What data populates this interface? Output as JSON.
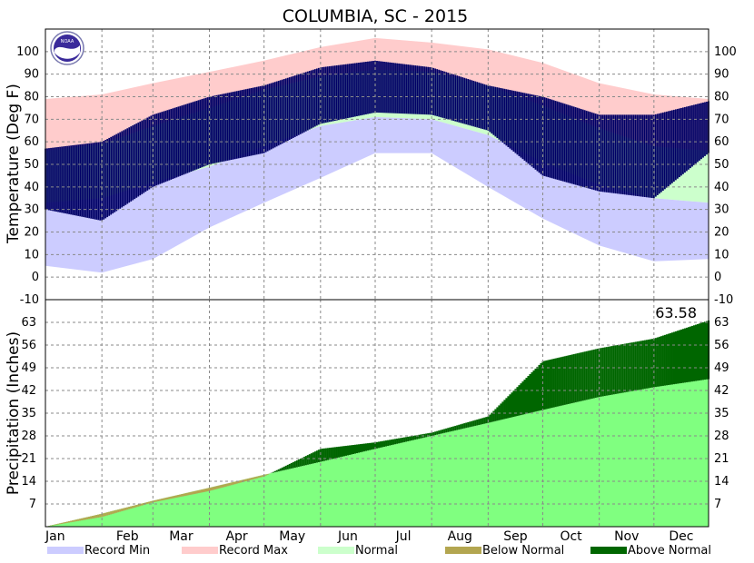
{
  "chart_data": [
    {
      "id": "temperature",
      "type": "area",
      "title": "COLUMBIA, SC - 2015",
      "ylabel": "Temperature (Deg F)",
      "ylim": [
        -10,
        110
      ],
      "yticks": [
        -10,
        0,
        10,
        20,
        30,
        40,
        50,
        60,
        70,
        80,
        90,
        100
      ],
      "grid": true,
      "months": [
        "Jan",
        "Feb",
        "Mar",
        "Apr",
        "May",
        "Jun",
        "Jul",
        "Aug",
        "Sep",
        "Oct",
        "Nov",
        "Dec"
      ],
      "x_unit": "day of year",
      "x": [
        1,
        32,
        60,
        91,
        121,
        152,
        182,
        213,
        244,
        274,
        305,
        335,
        365
      ],
      "series": [
        {
          "name": "Record Max",
          "color": "#ffcccc",
          "values": [
            79,
            81,
            86,
            91,
            96,
            102,
            106,
            104,
            101,
            95,
            86,
            81,
            79
          ]
        },
        {
          "name": "Normal",
          "color": "#ccffcc",
          "high": [
            56,
            59,
            67,
            75,
            83,
            89,
            92,
            91,
            85,
            76,
            66,
            58,
            56
          ],
          "low": [
            33,
            35,
            42,
            49,
            58,
            67,
            71,
            70,
            63,
            51,
            41,
            35,
            33
          ]
        },
        {
          "name": "Record Min",
          "color": "#ccccff",
          "values": [
            5,
            2,
            8,
            22,
            33,
            44,
            55,
            55,
            40,
            26,
            14,
            7,
            8
          ]
        }
      ],
      "observed": {
        "color": "#000066",
        "high": [
          57,
          60,
          72,
          80,
          85,
          93,
          96,
          93,
          85,
          80,
          72,
          72,
          78
        ],
        "low": [
          30,
          25,
          40,
          50,
          55,
          68,
          73,
          72,
          65,
          45,
          38,
          35,
          55
        ]
      }
    },
    {
      "id": "precipitation",
      "type": "area",
      "ylabel": "Precipitation (Inches)",
      "ylim": [
        0,
        70
      ],
      "yticks": [
        7,
        14,
        21,
        28,
        35,
        42,
        49,
        56,
        63
      ],
      "grid": true,
      "total_label": "63.58",
      "x_unit": "day of year",
      "x": [
        1,
        32,
        60,
        91,
        121,
        152,
        182,
        213,
        244,
        274,
        305,
        335,
        365
      ],
      "normal": [
        0,
        4,
        8,
        12,
        16,
        20,
        24,
        28,
        32,
        36,
        40,
        43,
        45.5
      ],
      "observed": [
        0,
        3,
        7.5,
        11,
        15.5,
        24,
        26,
        29,
        34,
        51,
        55,
        58,
        63.58
      ],
      "colors": {
        "normal": "#80ff80",
        "below": "#b3a650",
        "above": "#006600"
      }
    }
  ],
  "legend": [
    {
      "label": "Record Min",
      "color": "#ccccff"
    },
    {
      "label": "Record Max",
      "color": "#ffcccc"
    },
    {
      "label": "Normal",
      "color": "#ccffcc"
    },
    {
      "label": "Below Normal",
      "color": "#b3a650"
    },
    {
      "label": "Above Normal",
      "color": "#006600"
    }
  ],
  "logo": {
    "text": "NOAA",
    "color": "#3a2a9a"
  }
}
